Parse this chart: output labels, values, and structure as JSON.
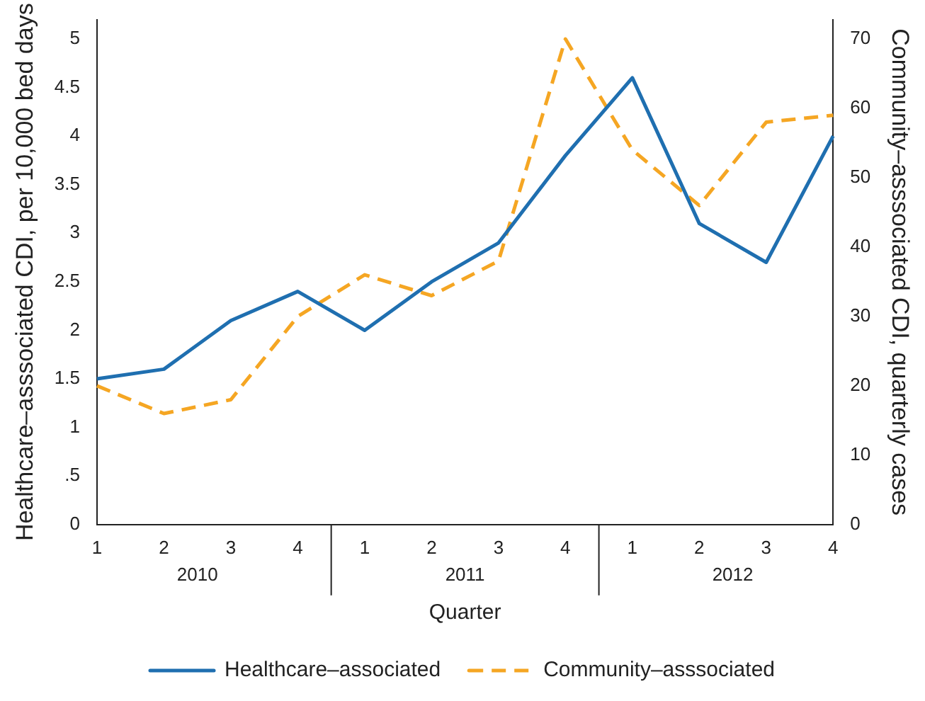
{
  "chart_data": {
    "type": "line",
    "xlabel": "Quarter",
    "ylabel": "Healthcare–asssociated CDI, per 10,000 bed days",
    "y2label": "Community–asssociated CDI, quarterly cases",
    "categories": [
      "1",
      "2",
      "3",
      "4",
      "1",
      "2",
      "3",
      "4",
      "1",
      "2",
      "3",
      "4"
    ],
    "annotations": [
      "2010",
      "2011",
      "2012"
    ],
    "series": [
      {
        "name": "Healthcare–associated",
        "color": "#1f6fb0",
        "line_style": "solid",
        "values": [
          1.5,
          1.6,
          2.1,
          2.4,
          2.0,
          2.5,
          2.9,
          3.8,
          4.6,
          3.1,
          2.7,
          4.0
        ]
      },
      {
        "name": "Community–asssociated",
        "color": "#f5a623",
        "line_style": "dashed",
        "axis": "y2",
        "values": [
          20,
          16,
          18,
          30,
          36,
          33,
          38,
          70,
          54,
          46,
          58,
          59
        ]
      }
    ],
    "ylim": [
      0,
      5.2
    ],
    "yticks": [
      0,
      {
        "value": 0.5,
        "label": ".5"
      },
      1,
      1.5,
      2,
      2.5,
      3,
      3.5,
      4,
      4.5,
      5
    ],
    "y2lim": [
      0,
      72.8
    ],
    "y2ticks": [
      0,
      10,
      20,
      30,
      40,
      50,
      60,
      70
    ],
    "grid": false,
    "legend": "bottom",
    "marker": "none"
  }
}
